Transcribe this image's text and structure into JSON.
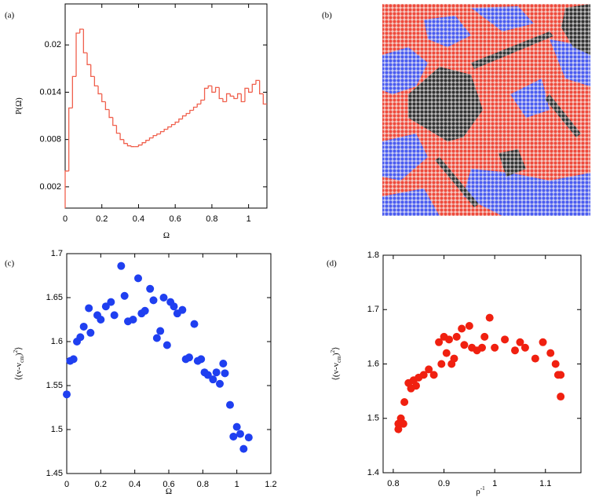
{
  "chart_data": [
    {
      "type": "histogram",
      "panel_label": "(a)",
      "x_label": [
        "Ω"
      ],
      "y_label": [
        "P(Ω)"
      ],
      "color": "#f0604d",
      "bins": [
        0,
        0.02,
        0.04,
        0.06,
        0.08,
        0.1,
        0.12,
        0.14,
        0.16,
        0.18,
        0.2,
        0.22,
        0.24,
        0.26,
        0.28,
        0.3,
        0.32,
        0.34,
        0.36,
        0.38,
        0.4,
        0.42,
        0.44,
        0.46,
        0.48,
        0.5,
        0.52,
        0.54,
        0.56,
        0.58,
        0.6,
        0.62,
        0.64,
        0.66,
        0.68,
        0.7,
        0.72,
        0.74,
        0.76,
        0.78,
        0.8,
        0.82,
        0.84,
        0.86,
        0.88,
        0.9,
        0.92,
        0.94,
        0.96,
        0.98,
        1,
        1.02,
        1.04,
        1.06,
        1.08,
        1.1
      ],
      "values": [
        0.004,
        0.012,
        0.016,
        0.0215,
        0.022,
        0.019,
        0.0175,
        0.016,
        0.0148,
        0.0138,
        0.0128,
        0.0118,
        0.0108,
        0.0098,
        0.0088,
        0.008,
        0.0075,
        0.0072,
        0.0071,
        0.0071,
        0.0073,
        0.0076,
        0.0079,
        0.0082,
        0.0085,
        0.0087,
        0.009,
        0.0093,
        0.0096,
        0.0099,
        0.0102,
        0.0106,
        0.011,
        0.0113,
        0.0117,
        0.0121,
        0.0125,
        0.013,
        0.0145,
        0.0148,
        0.014,
        0.0146,
        0.0132,
        0.0128,
        0.0138,
        0.0135,
        0.0132,
        0.0138,
        0.0128,
        0.0145,
        0.014,
        0.015,
        0.0155,
        0.0138,
        0.0125
      ],
      "xlim": [
        0,
        1.1
      ],
      "xticks": [
        0,
        0.2,
        0.4,
        0.6,
        0.8,
        1
      ],
      "ylim": [
        -0.0007,
        0.0252
      ],
      "yticks": [
        0.002,
        0.008,
        0.014,
        0.02
      ]
    },
    {
      "type": "image",
      "panel_label": "(b)"
    },
    {
      "type": "scatter",
      "panel_label": "(c)",
      "x_label": [
        "Ω"
      ],
      "y_label": [
        "⟨(v-v",
        "cm",
        ")",
        "2",
        "⟩"
      ],
      "color": "#1f3ff0",
      "x": [
        0,
        0.02,
        0.04,
        0.06,
        0.08,
        0.1,
        0.13,
        0.14,
        0.18,
        0.2,
        0.23,
        0.26,
        0.28,
        0.32,
        0.34,
        0.36,
        0.39,
        0.42,
        0.44,
        0.46,
        0.49,
        0.51,
        0.53,
        0.55,
        0.57,
        0.59,
        0.61,
        0.63,
        0.65,
        0.68,
        0.7,
        0.72,
        0.75,
        0.77,
        0.79,
        0.81,
        0.83,
        0.86,
        0.88,
        0.9,
        0.92,
        0.93,
        0.96,
        0.98,
        1,
        1.02,
        1.04,
        1.07
      ],
      "y": [
        1.54,
        1.578,
        1.58,
        1.6,
        1.605,
        1.617,
        1.638,
        1.61,
        1.63,
        1.625,
        1.64,
        1.645,
        1.63,
        1.686,
        1.652,
        1.623,
        1.625,
        1.672,
        1.632,
        1.635,
        1.66,
        1.647,
        1.604,
        1.612,
        1.65,
        1.596,
        1.645,
        1.64,
        1.632,
        1.636,
        1.58,
        1.582,
        1.62,
        1.578,
        1.58,
        1.565,
        1.562,
        1.557,
        1.565,
        1.552,
        1.575,
        1.564,
        1.528,
        1.492,
        1.503,
        1.495,
        1.478,
        1.491
      ],
      "xlim": [
        0,
        1.2
      ],
      "xticks": [
        0,
        0.2,
        0.4,
        0.6,
        0.8,
        1,
        1.2
      ],
      "ylim": [
        1.45,
        1.7
      ],
      "yticks": [
        1.45,
        1.5,
        1.55,
        1.6,
        1.65,
        1.7
      ]
    },
    {
      "type": "scatter",
      "panel_label": "(d)",
      "x_label": [
        "ρ",
        "-1"
      ],
      "y_label": [
        "⟨(v-v",
        "cm",
        ")",
        "2",
        "⟩"
      ],
      "color": "#f02010",
      "x": [
        0.81,
        0.81,
        0.815,
        0.82,
        0.822,
        0.83,
        0.835,
        0.84,
        0.845,
        0.85,
        0.86,
        0.87,
        0.88,
        0.89,
        0.895,
        0.9,
        0.905,
        0.91,
        0.915,
        0.92,
        0.925,
        0.935,
        0.94,
        0.95,
        0.955,
        0.965,
        0.975,
        0.98,
        0.99,
        1,
        1.02,
        1.04,
        1.05,
        1.06,
        1.08,
        1.095,
        1.11,
        1.12,
        1.125,
        1.13,
        1.13
      ],
      "y": [
        1.49,
        1.48,
        1.5,
        1.49,
        1.53,
        1.565,
        1.555,
        1.57,
        1.56,
        1.575,
        1.58,
        1.59,
        1.58,
        1.64,
        1.6,
        1.65,
        1.62,
        1.645,
        1.6,
        1.61,
        1.65,
        1.665,
        1.635,
        1.67,
        1.63,
        1.625,
        1.63,
        1.65,
        1.685,
        1.63,
        1.645,
        1.625,
        1.64,
        1.63,
        1.61,
        1.64,
        1.62,
        1.6,
        1.58,
        1.54,
        1.58
      ],
      "xlim": [
        0.78,
        1.17
      ],
      "xticks": [
        0.8,
        0.9,
        1,
        1.1
      ],
      "ylim": [
        1.4,
        1.8
      ],
      "yticks": [
        1.4,
        1.5,
        1.6,
        1.7,
        1.8
      ]
    }
  ]
}
